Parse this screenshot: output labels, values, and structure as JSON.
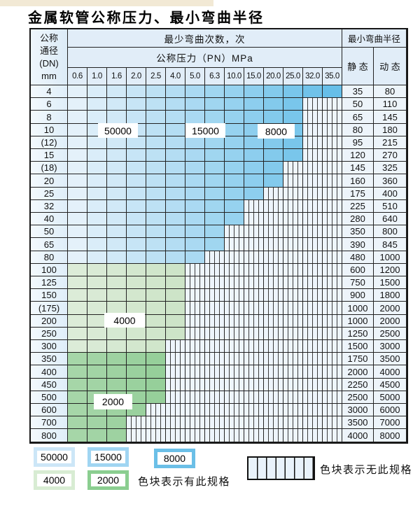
{
  "title": "金属软管公称压力、最小弯曲半径",
  "table": {
    "header": {
      "dn_lines": [
        "公称",
        "通径",
        "(DN)",
        "mm"
      ],
      "bend_count_label": "最少弯曲次数，次",
      "pressure_label": "公称压力（PN）MPa",
      "pressure_columns": [
        "0.6",
        "1.0",
        "1.6",
        "2.0",
        "2.5",
        "4.0",
        "5.0",
        "6.3",
        "10.0",
        "15.0",
        "20.0",
        "25.0",
        "32.0",
        "35.0"
      ],
      "radius_label": "最小弯曲半径",
      "static_label": "静 态",
      "dynamic_label": "动 态"
    },
    "rows": [
      {
        "dn": "4",
        "shade": "blue",
        "colored": 14,
        "static": "35",
        "dynamic": "80"
      },
      {
        "dn": "6",
        "shade": "blue",
        "colored": 12,
        "static": "50",
        "dynamic": "110"
      },
      {
        "dn": "8",
        "shade": "blue",
        "colored": 12,
        "static": "65",
        "dynamic": "145"
      },
      {
        "dn": "10",
        "shade": "blue",
        "colored": 12,
        "static": "80",
        "dynamic": "180"
      },
      {
        "dn": "(12)",
        "shade": "blue",
        "colored": 12,
        "static": "95",
        "dynamic": "215"
      },
      {
        "dn": "15",
        "shade": "blue",
        "colored": 12,
        "static": "120",
        "dynamic": "270"
      },
      {
        "dn": "(18)",
        "shade": "blue",
        "colored": 11,
        "static": "145",
        "dynamic": "325"
      },
      {
        "dn": "20",
        "shade": "blue",
        "colored": 11,
        "static": "160",
        "dynamic": "360"
      },
      {
        "dn": "25",
        "shade": "blue",
        "colored": 10,
        "static": "175",
        "dynamic": "400"
      },
      {
        "dn": "32",
        "shade": "blue",
        "colored": 9,
        "static": "225",
        "dynamic": "510"
      },
      {
        "dn": "40",
        "shade": "blue",
        "colored": 9,
        "static": "280",
        "dynamic": "640"
      },
      {
        "dn": "50",
        "shade": "blue",
        "colored": 8,
        "static": "350",
        "dynamic": "800"
      },
      {
        "dn": "65",
        "shade": "blue",
        "colored": 8,
        "static": "390",
        "dynamic": "845"
      },
      {
        "dn": "80",
        "shade": "blue",
        "colored": 7,
        "static": "480",
        "dynamic": "1000"
      },
      {
        "dn": "100",
        "shade": "green_light",
        "colored": 6,
        "static": "600",
        "dynamic": "1200"
      },
      {
        "dn": "125",
        "shade": "green_light",
        "colored": 6,
        "static": "750",
        "dynamic": "1500"
      },
      {
        "dn": "150",
        "shade": "green_light",
        "colored": 6,
        "static": "900",
        "dynamic": "1800"
      },
      {
        "dn": "(175)",
        "shade": "green_light",
        "colored": 6,
        "static": "1000",
        "dynamic": "2000"
      },
      {
        "dn": "200",
        "shade": "green_light",
        "colored": 6,
        "static": "1000",
        "dynamic": "2000"
      },
      {
        "dn": "250",
        "shade": "green_light",
        "colored": 6,
        "static": "1250",
        "dynamic": "2500"
      },
      {
        "dn": "300",
        "shade": "green_light",
        "colored": 5,
        "static": "1500",
        "dynamic": "3000"
      },
      {
        "dn": "350",
        "shade": "green_dark",
        "colored": 5,
        "static": "1750",
        "dynamic": "3500"
      },
      {
        "dn": "400",
        "shade": "green_dark",
        "colored": 5,
        "static": "2000",
        "dynamic": "4000"
      },
      {
        "dn": "450",
        "shade": "green_dark",
        "colored": 5,
        "static": "2250",
        "dynamic": "4500"
      },
      {
        "dn": "500",
        "shade": "green_dark",
        "colored": 5,
        "static": "2500",
        "dynamic": "5000"
      },
      {
        "dn": "600",
        "shade": "green_dark",
        "colored": 4,
        "static": "3000",
        "dynamic": "6000"
      },
      {
        "dn": "700",
        "shade": "green_dark",
        "colored": 3,
        "static": "3500",
        "dynamic": "7000"
      },
      {
        "dn": "800",
        "shade": "green_dark",
        "colored": 3,
        "static": "4000",
        "dynamic": "8000"
      }
    ],
    "overlay_labels": [
      {
        "text": "50000"
      },
      {
        "text": "15000"
      },
      {
        "text": "8000"
      },
      {
        "text": "4000"
      },
      {
        "text": "2000"
      }
    ]
  },
  "legend": {
    "swatches": [
      {
        "value": "50000",
        "color": "#cce6f7"
      },
      {
        "value": "15000",
        "color": "#a0d5f2"
      },
      {
        "value": "8000",
        "color": "#6bbfe7"
      },
      {
        "value": "4000",
        "color": "#d8ecd3"
      },
      {
        "value": "2000",
        "color": "#8bce90"
      }
    ],
    "has_spec_text": "色块表示有此规格",
    "no_spec_text": "色块表示无此规格",
    "hatch_slats": 7
  },
  "colors": {
    "blue_ramp_start": "#e4f1fa",
    "blue_ramp_end": "#66bee8",
    "green_light_start": "#dcecd8",
    "green_light_end": "#cde4c8",
    "green_dark_start": "#a6d6a8",
    "green_dark_end": "#92cd97",
    "hatch_bg": "#eef5fc",
    "hatch_line": "#3b3b3b",
    "grid_line": "#222222",
    "top_strip": "#f2e9d5"
  }
}
